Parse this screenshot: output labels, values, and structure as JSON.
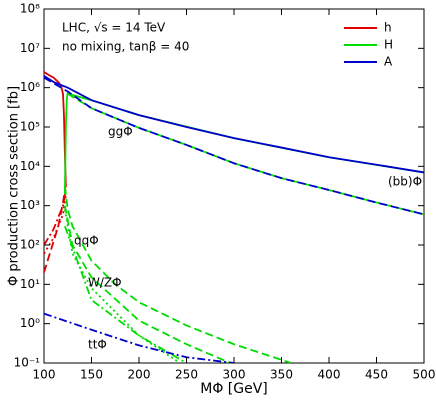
{
  "chart_data": {
    "type": "line",
    "ylabel": "Φ production cross section [fb]",
    "xlabel": "MΦ [GeV]",
    "notes": [
      "LHC, √s = 14 TeV",
      "no mixing, tanβ = 40"
    ],
    "annotations": [
      "ggΦ",
      "(bb)Φ",
      "qqΦ",
      "W/ZΦ",
      "ttΦ"
    ],
    "xlim": [
      100,
      500
    ],
    "xticks": [
      100,
      150,
      200,
      250,
      300,
      350,
      400,
      450,
      500
    ],
    "ylim": [
      0.1,
      100000000
    ],
    "ylog": true,
    "yticks": [
      {
        "value": 0.1,
        "label": "10⁻¹"
      },
      {
        "value": 1,
        "label": "10⁰"
      },
      {
        "value": 10,
        "label": "10¹"
      },
      {
        "value": 100,
        "label": "10²"
      },
      {
        "value": 1000,
        "label": "10³"
      },
      {
        "value": 10000,
        "label": "10⁴"
      },
      {
        "value": 100000,
        "label": "10⁵"
      },
      {
        "value": 1000000,
        "label": "10⁶"
      },
      {
        "value": 10000000,
        "label": "10⁷"
      },
      {
        "value": 100000000,
        "label": "10⁸"
      }
    ],
    "legend": "upper right",
    "series": [
      {
        "name": "h",
        "color": "#e00000",
        "curves": [
          {
            "style": "solid",
            "x": [
              100,
              105,
              110,
              115,
              118,
              120,
              121,
              122,
              123
            ],
            "values": [
              2500000,
              2100000,
              1800000,
              1400000,
              1100000,
              700000,
              200000,
              20000,
              3000
            ]
          },
          {
            "style": "dashed",
            "x": [
              100,
              105,
              110,
              115,
              120,
              123
            ],
            "values": [
              20,
              50,
              120,
              300,
              1200,
              3500
            ]
          },
          {
            "style": "dashdot",
            "x": [
              100,
              110,
              120,
              123
            ],
            "values": [
              100,
              250,
              1000,
              2500
            ]
          },
          {
            "style": "dotted",
            "x": [
              100,
              110,
              120,
              123
            ],
            "values": [
              60,
              150,
              600,
              1800
            ]
          }
        ]
      },
      {
        "name": "H",
        "color": "#00dd00",
        "curves": [
          {
            "style": "solid",
            "x": [
              122,
              123,
              124,
              125,
              130,
              150,
              200,
              300,
              400,
              500
            ],
            "values": [
              2000,
              100000,
              500000,
              750000,
              650000,
              480000,
              200000,
              52000,
              17000,
              7000
            ]
          },
          {
            "style": "dashed",
            "x": [
              125,
              150,
              200,
              250,
              300,
              350,
              400,
              450,
              500
            ],
            "values": [
              700000,
              300000,
              95000,
              35000,
              12000,
              5000,
              2500,
              1200,
              600
            ]
          },
          {
            "style": "dashed",
            "x": [
              122,
              125,
              130,
              150,
              175,
              200,
              250,
              300,
              360
            ],
            "values": [
              3000,
              800,
              300,
              40,
              10,
              3.5,
              0.9,
              0.3,
              0.1
            ]
          },
          {
            "style": "dashed",
            "x": [
              122,
              130,
              150,
              200,
              250,
              296
            ],
            "values": [
              1000,
              100,
              15,
              1.2,
              0.3,
              0.1
            ]
          },
          {
            "style": "dotted",
            "x": [
              122,
              130,
              150,
              200,
              243
            ],
            "values": [
              800,
              60,
              8,
              0.5,
              0.1
            ]
          },
          {
            "style": "dashdot",
            "x": [
              122,
              150,
              200,
              250
            ],
            "values": [
              300,
              4,
              0.5,
              0.1
            ]
          }
        ]
      },
      {
        "name": "A",
        "color": "#0000cc",
        "curves": [
          {
            "style": "solid",
            "x": [
              100,
              110,
              125,
              150,
              200,
              250,
              300,
              350,
              400,
              450,
              500
            ],
            "values": [
              2000000,
              1400000,
              1000000,
              480000,
              200000,
              100000,
              52000,
              30000,
              17000,
              11000,
              7000
            ]
          },
          {
            "style": "dashed",
            "x": [
              100,
              110,
              125,
              150,
              200,
              250,
              300,
              350,
              400,
              450,
              500
            ],
            "values": [
              1800000,
              1300000,
              800000,
              300000,
              95000,
              35000,
              12000,
              5000,
              2500,
              1200,
              600
            ]
          },
          {
            "style": "dashdot",
            "x": [
              100,
              150,
              200,
              250,
              300
            ],
            "values": [
              1.8,
              0.7,
              0.28,
              0.14,
              0.1
            ]
          }
        ]
      }
    ]
  }
}
